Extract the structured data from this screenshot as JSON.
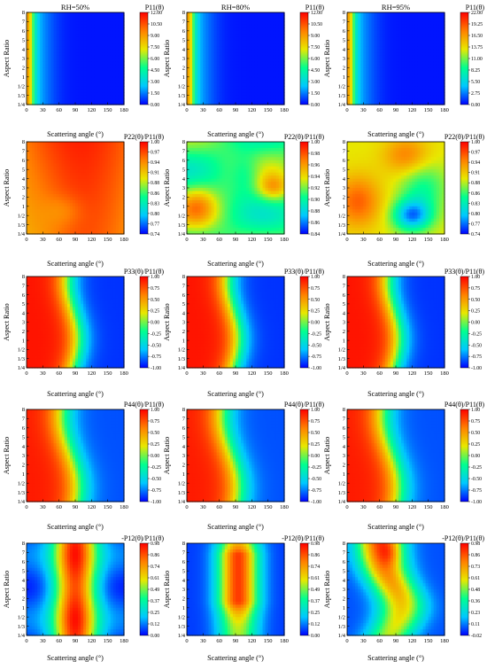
{
  "figure": {
    "x_axis_label": "Scattering angle (°)",
    "y_axis_label": "Aspect Ratio",
    "x_ticks": [
      "0",
      "30",
      "60",
      "90",
      "120",
      "150",
      "180"
    ],
    "y_ticks": [
      "1/4",
      "1/3",
      "1/2",
      "1",
      "2",
      "3",
      "4",
      "5",
      "6",
      "7",
      "8"
    ],
    "column_titles": [
      "RH=50%",
      "RH=80%",
      "RH=95%"
    ],
    "colormap": [
      "#0000ff",
      "#00c8ff",
      "#00ff90",
      "#e8e800",
      "#ff8000",
      "#ff0000"
    ]
  },
  "chart_data": [
    {
      "id": "r0c0",
      "type": "heatmap",
      "row": 0,
      "col": 0,
      "title": "RH=50%",
      "colorbar_title": "P11(θ)",
      "cmin": 0,
      "cmax": 12,
      "colorbar_ticks": [
        "0.00",
        "1.50",
        "3.00",
        "4.50",
        "6.00",
        "7.50",
        "9.00",
        "10.50",
        "12.00"
      ],
      "pattern": "p11",
      "peak": 6.5
    },
    {
      "id": "r0c1",
      "type": "heatmap",
      "row": 0,
      "col": 1,
      "title": "RH=80%",
      "colorbar_title": "P11(θ)",
      "cmin": 0,
      "cmax": 12,
      "colorbar_ticks": [
        "0.00",
        "1.50",
        "3.00",
        "4.50",
        "6.00",
        "7.50",
        "9.00",
        "10.50",
        "12.00"
      ],
      "pattern": "p11",
      "peak": 5.5
    },
    {
      "id": "r0c2",
      "type": "heatmap",
      "row": 0,
      "col": 2,
      "title": "RH=95%",
      "colorbar_title": "P11(θ)",
      "cmin": 0,
      "cmax": 22,
      "colorbar_ticks": [
        "0.00",
        "2.75",
        "5.50",
        "8.25",
        "11.00",
        "13.75",
        "16.50",
        "19.25",
        "22.00"
      ],
      "pattern": "p11",
      "peak": 22
    },
    {
      "id": "r1c0",
      "type": "heatmap",
      "row": 1,
      "col": 0,
      "title": "",
      "colorbar_title": "P22(θ)/P11(θ)",
      "cmin": 0.74,
      "cmax": 1.0,
      "colorbar_ticks": [
        "0.74",
        "0.77",
        "0.80",
        "0.83",
        "0.86",
        "0.88",
        "0.91",
        "0.94",
        "0.97",
        "1.00"
      ],
      "pattern": "p22a",
      "peak": 1.0
    },
    {
      "id": "r1c1",
      "type": "heatmap",
      "row": 1,
      "col": 1,
      "title": "",
      "colorbar_title": "P22(θ)/P11(θ)",
      "cmin": 0.84,
      "cmax": 1.0,
      "colorbar_ticks": [
        "0.84",
        "0.86",
        "0.88",
        "0.90",
        "0.92",
        "0.94",
        "0.96",
        "0.98",
        "1.00"
      ],
      "pattern": "p22b",
      "peak": 1.0
    },
    {
      "id": "r1c2",
      "type": "heatmap",
      "row": 1,
      "col": 2,
      "title": "",
      "colorbar_title": "P22(θ)/P11(θ)",
      "cmin": 0.74,
      "cmax": 1.0,
      "colorbar_ticks": [
        "0.74",
        "0.77",
        "0.80",
        "0.83",
        "0.86",
        "0.88",
        "0.91",
        "0.94",
        "0.97",
        "1.00"
      ],
      "pattern": "p22c",
      "peak": 1.0
    },
    {
      "id": "r2c0",
      "type": "heatmap",
      "row": 2,
      "col": 0,
      "title": "",
      "colorbar_title": "P33(θ)/P11(θ)",
      "cmin": -1.0,
      "cmax": 1.0,
      "colorbar_ticks": [
        "-1.00",
        "-0.75",
        "-0.50",
        "-0.25",
        "0.00",
        "0.25",
        "0.50",
        "0.75",
        "1.00"
      ],
      "pattern": "p33",
      "peak": 1.0
    },
    {
      "id": "r2c1",
      "type": "heatmap",
      "row": 2,
      "col": 1,
      "title": "",
      "colorbar_title": "P33(θ)/P11(θ)",
      "cmin": -1.0,
      "cmax": 1.0,
      "colorbar_ticks": [
        "-1.00",
        "-0.75",
        "-0.50",
        "-0.25",
        "0.00",
        "0.25",
        "0.50",
        "0.75",
        "1.00"
      ],
      "pattern": "p33",
      "peak": 1.0
    },
    {
      "id": "r2c2",
      "type": "heatmap",
      "row": 2,
      "col": 2,
      "title": "",
      "colorbar_title": "P33(θ)/P11(θ)",
      "cmin": -1.0,
      "cmax": 1.0,
      "colorbar_ticks": [
        "-1.00",
        "-0.75",
        "-0.50",
        "-0.25",
        "0.00",
        "0.25",
        "0.50",
        "0.75",
        "1.00"
      ],
      "pattern": "p33",
      "peak": 1.0
    },
    {
      "id": "r3c0",
      "type": "heatmap",
      "row": 3,
      "col": 0,
      "title": "",
      "colorbar_title": "P44(θ)/P11(θ)",
      "cmin": -1.0,
      "cmax": 1.0,
      "colorbar_ticks": [
        "-1.00",
        "-0.75",
        "-0.50",
        "-0.25",
        "0.00",
        "0.25",
        "0.50",
        "0.75",
        "1.00"
      ],
      "pattern": "p44",
      "peak": 1.0
    },
    {
      "id": "r3c1",
      "type": "heatmap",
      "row": 3,
      "col": 1,
      "title": "",
      "colorbar_title": "P44(θ)/P11(θ)",
      "cmin": -1.0,
      "cmax": 1.0,
      "colorbar_ticks": [
        "-1.00",
        "-0.75",
        "-0.50",
        "-0.25",
        "0.00",
        "0.25",
        "0.50",
        "0.75",
        "1.00"
      ],
      "pattern": "p44",
      "peak": 1.0
    },
    {
      "id": "r3c2",
      "type": "heatmap",
      "row": 3,
      "col": 2,
      "title": "",
      "colorbar_title": "P44(θ)/P11(θ)",
      "cmin": -1.0,
      "cmax": 1.0,
      "colorbar_ticks": [
        "-1.00",
        "-0.75",
        "-0.50",
        "-0.25",
        "0.00",
        "0.25",
        "0.50",
        "0.75",
        "1.00"
      ],
      "pattern": "p44",
      "peak": 1.0
    },
    {
      "id": "r4c0",
      "type": "heatmap",
      "row": 4,
      "col": 0,
      "title": "",
      "colorbar_title": "-P12(θ)/P11(θ)",
      "cmin": 0.0,
      "cmax": 0.98,
      "colorbar_ticks": [
        "0.00",
        "0.12",
        "0.25",
        "0.37",
        "0.49",
        "0.61",
        "0.74",
        "0.86",
        "0.98"
      ],
      "pattern": "p12a",
      "peak": 0.98
    },
    {
      "id": "r4c1",
      "type": "heatmap",
      "row": 4,
      "col": 1,
      "title": "",
      "colorbar_title": "-P12(θ)/P11(θ)",
      "cmin": 0.0,
      "cmax": 0.98,
      "colorbar_ticks": [
        "0.00",
        "0.12",
        "0.25",
        "0.37",
        "0.49",
        "0.61",
        "0.74",
        "0.86",
        "0.98"
      ],
      "pattern": "p12b",
      "peak": 0.98
    },
    {
      "id": "r4c2",
      "type": "heatmap",
      "row": 4,
      "col": 2,
      "title": "",
      "colorbar_title": "-P12(θ)/P11(θ)",
      "cmin": -0.02,
      "cmax": 0.98,
      "colorbar_ticks": [
        "-0.02",
        "0.11",
        "0.23",
        "0.36",
        "0.48",
        "0.61",
        "0.73",
        "0.86",
        "0.98"
      ],
      "pattern": "p12c",
      "peak": 0.98
    }
  ]
}
